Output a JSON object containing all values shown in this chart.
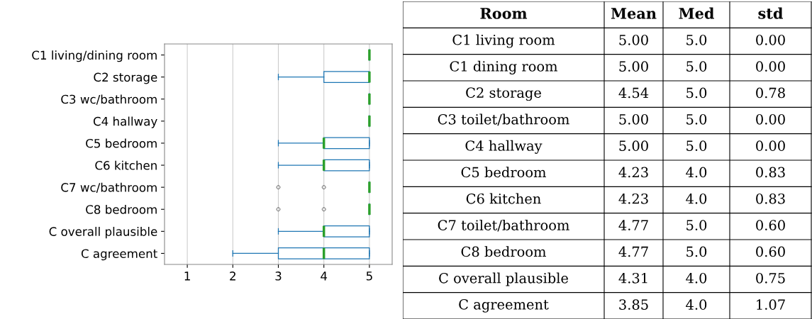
{
  "chart_data": [
    {
      "type": "box",
      "orientation": "horizontal",
      "categories": [
        "C1 living/dining room",
        "C2 storage",
        "C3 wc/bathroom",
        "C4 hallway",
        "C5 bedroom",
        "C6 kitchen",
        "C7 wc/bathroom",
        "C8 bedroom",
        "C overall plausible",
        "C agreement"
      ],
      "boxes": [
        {
          "low": 5,
          "q1": 5,
          "median": 5,
          "q3": 5,
          "high": 5
        },
        {
          "low": 3,
          "q1": 4,
          "median": 5,
          "q3": 5,
          "high": 5
        },
        {
          "low": 5,
          "q1": 5,
          "median": 5,
          "q3": 5,
          "high": 5
        },
        {
          "low": 5,
          "q1": 5,
          "median": 5,
          "q3": 5,
          "high": 5
        },
        {
          "low": 3,
          "q1": 4,
          "median": 4,
          "q3": 5,
          "high": 5
        },
        {
          "low": 3,
          "q1": 4,
          "median": 4,
          "q3": 5,
          "high": 5
        },
        {
          "low": 5,
          "q1": 5,
          "median": 5,
          "q3": 5,
          "high": 5,
          "outliers": [
            3,
            4
          ]
        },
        {
          "low": 5,
          "q1": 5,
          "median": 5,
          "q3": 5,
          "high": 5,
          "outliers": [
            3,
            4
          ]
        },
        {
          "low": 3,
          "q1": 4,
          "median": 4,
          "q3": 5,
          "high": 5
        },
        {
          "low": 2,
          "q1": 3,
          "median": 4,
          "q3": 5,
          "high": 5
        }
      ],
      "color": "#1f77b4",
      "xlim": [
        0.5,
        5.5
      ],
      "xticks": [
        1,
        2,
        3,
        4,
        5
      ],
      "grid": "x"
    },
    {
      "type": "other",
      "categories": [
        "Room",
        "Mean",
        "Med",
        "std"
      ],
      "y_categories": [
        "C1 living room",
        "C1 dining room",
        "C2 storage",
        "C3 toilet/bathroom",
        "C4 hallway",
        "C5 bedroom",
        "C6 kitchen",
        "C7 toilet/bathroom",
        "C8 bedroom",
        "C overall plausible",
        "C agreement"
      ],
      "cell_labels": [
        [
          "5.00",
          "5.0",
          "0.00"
        ],
        [
          "5.00",
          "5.0",
          "0.00"
        ],
        [
          "4.54",
          "5.0",
          "0.78"
        ],
        [
          "5.00",
          "5.0",
          "0.00"
        ],
        [
          "5.00",
          "5.0",
          "0.00"
        ],
        [
          "4.23",
          "4.0",
          "0.83"
        ],
        [
          "4.23",
          "4.0",
          "0.83"
        ],
        [
          "4.77",
          "5.0",
          "0.60"
        ],
        [
          "4.77",
          "5.0",
          "0.60"
        ],
        [
          "4.31",
          "4.0",
          "0.75"
        ],
        [
          "3.85",
          "4.0",
          "1.07"
        ]
      ]
    }
  ]
}
